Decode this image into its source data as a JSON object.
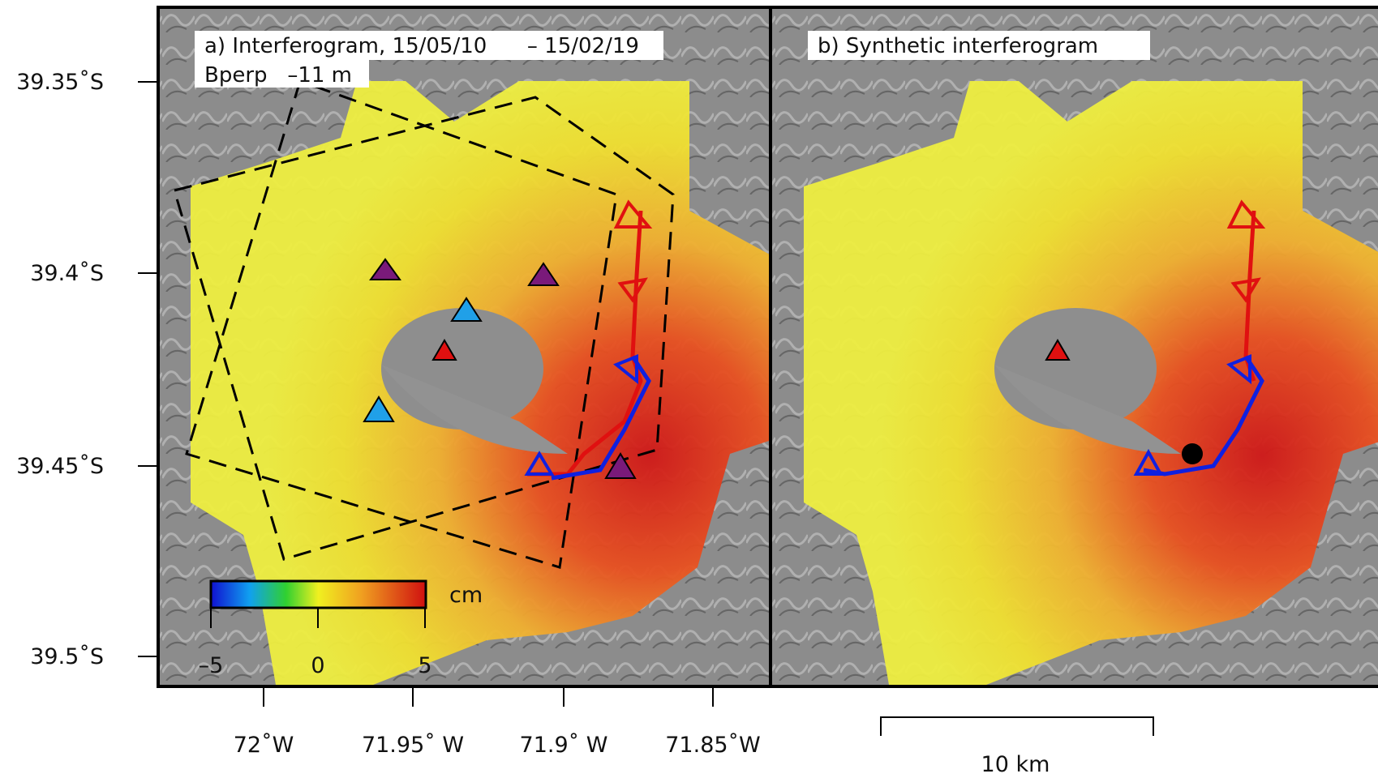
{
  "panels": [
    {
      "label": "a) Interferogram, 15/05/10      – 15/02/19",
      "sublabel": "Bperp   –11 m"
    },
    {
      "label": "b) Synthetic interferogram"
    }
  ],
  "lat_labels": [
    "39.35˚S",
    "39.4˚S",
    "39.45˚S",
    "39.5˚S"
  ],
  "lon_labels": [
    "72˚W",
    "71.95˚ W",
    "71.9˚ W",
    "71.85˚W"
  ],
  "colorbar": {
    "unit": "cm",
    "ticks": [
      "–5",
      "0",
      "5"
    ]
  },
  "scale_bar": {
    "label": "10 km"
  }
}
